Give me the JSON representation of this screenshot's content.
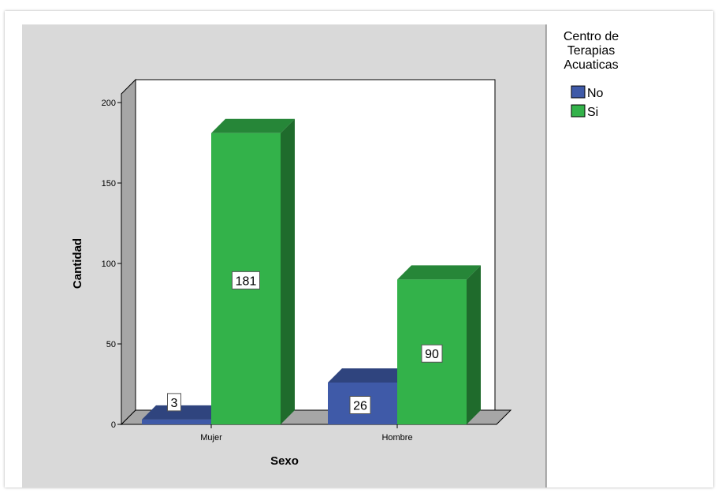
{
  "chart_data": {
    "type": "bar",
    "title": "",
    "xlabel": "Sexo",
    "ylabel": "Cantidad",
    "categories": [
      "Mujer",
      "Hombre"
    ],
    "series": [
      {
        "name": "No",
        "values": [
          3,
          26
        ],
        "color": "#3f5aa8"
      },
      {
        "name": "Si",
        "values": [
          181,
          90
        ],
        "color": "#33b24a"
      }
    ],
    "data_labels": [
      [
        "3",
        "26"
      ],
      [
        "181",
        "90"
      ]
    ],
    "ylim": [
      0,
      200
    ],
    "yticks": [
      0,
      50,
      100,
      150,
      200
    ],
    "grid": false,
    "legend": {
      "title_lines": [
        "Centro de",
        "Terapias",
        "Acuaticas"
      ],
      "placement": "right"
    }
  },
  "colors": {
    "plot_background": "#d9d9d9",
    "inner_background": "#ffffff",
    "wall_gray": "#a6a6a6",
    "axis": "#000000"
  }
}
